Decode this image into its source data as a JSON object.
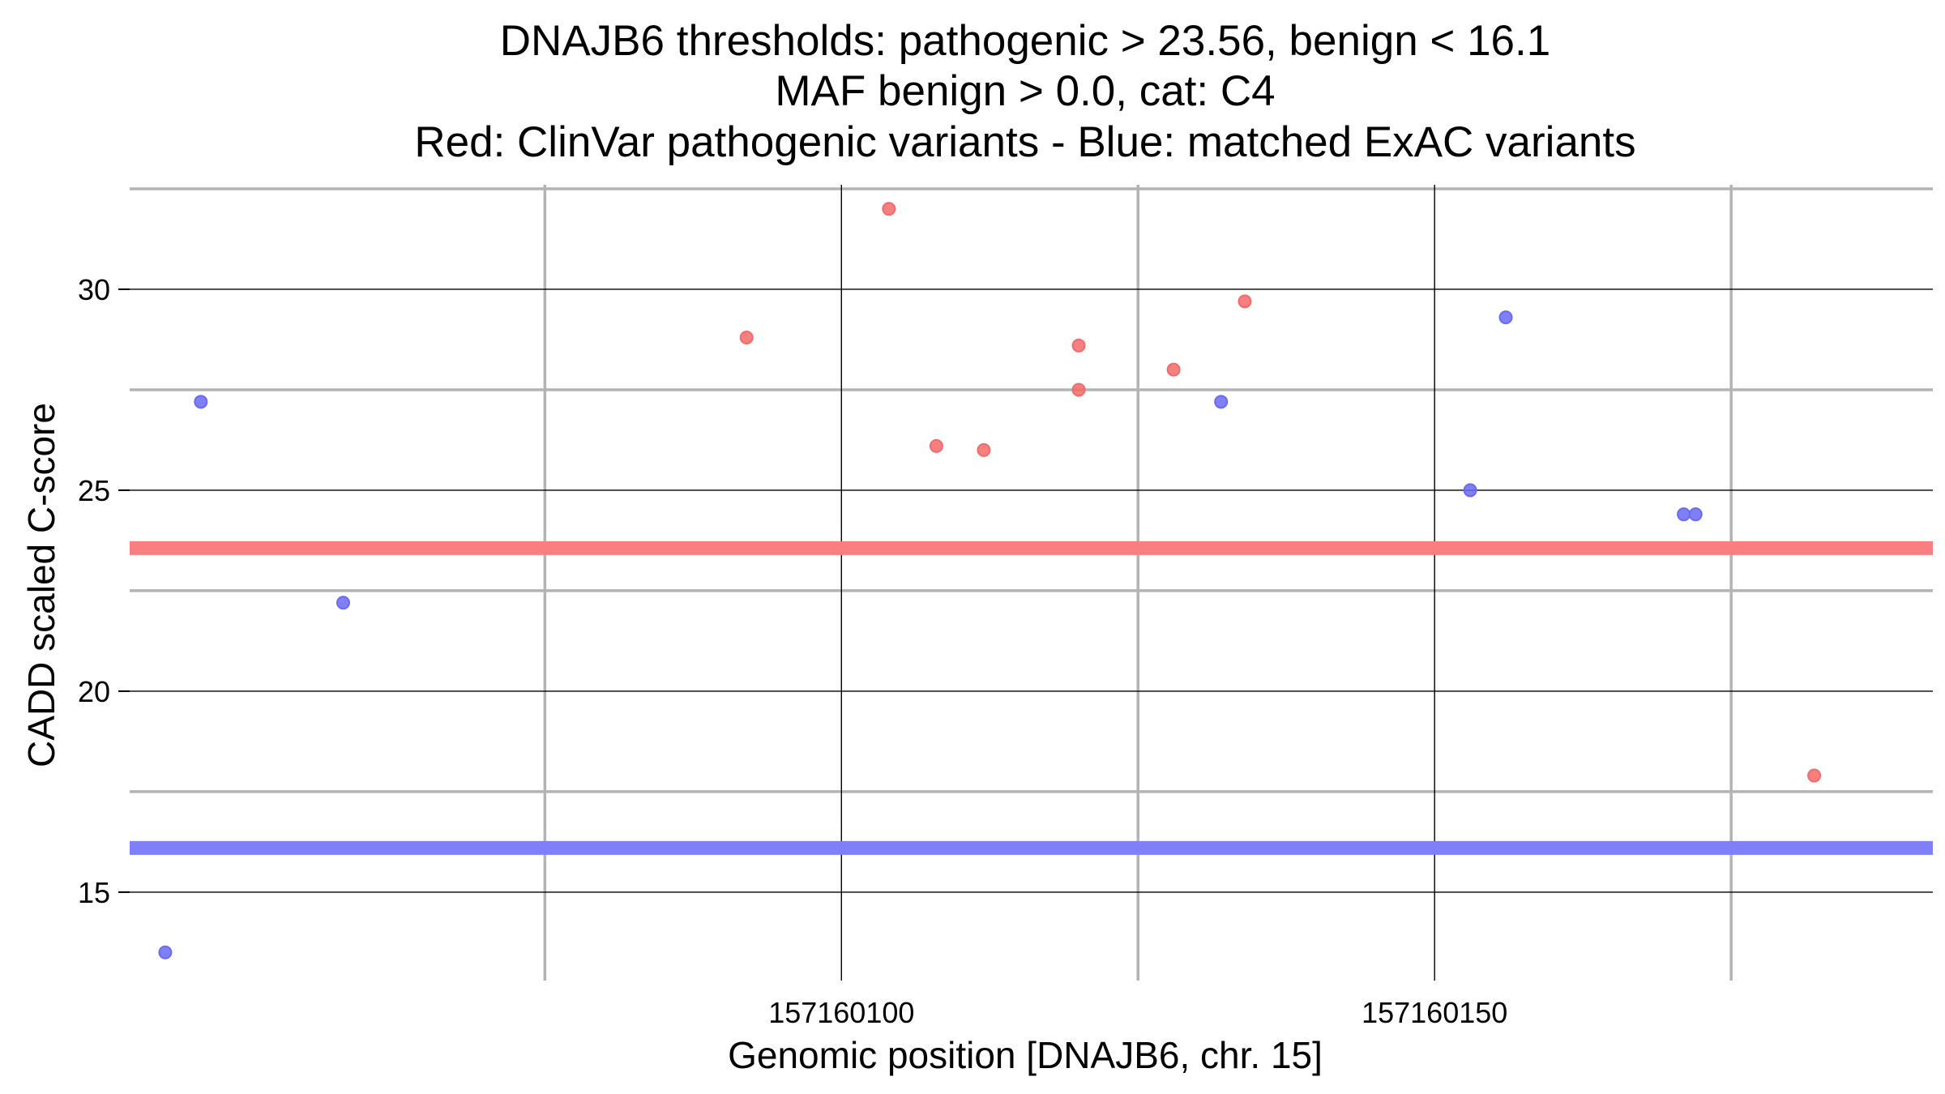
{
  "chart_data": {
    "type": "scatter",
    "title_lines": [
      "DNAJB6 thresholds: pathogenic > 23.56, benign < 16.1",
      "MAF benign > 0.0, cat: C4",
      "Red: ClinVar pathogenic variants - Blue: matched ExAC variants"
    ],
    "xlabel": "Genomic position [DNAJB6, chr. 15]",
    "ylabel": "CADD scaled C-score",
    "xlim": [
      157160040,
      157160192
    ],
    "ylim": [
      12.8,
      32.6
    ],
    "xticks": [
      157160100,
      157160150
    ],
    "yticks": [
      15,
      20,
      25,
      30
    ],
    "grid": true,
    "thresholds": [
      {
        "name": "pathogenic",
        "value": 23.56,
        "color": "#f77f7f"
      },
      {
        "name": "benign",
        "value": 16.1,
        "color": "#7f7ff7"
      }
    ],
    "series": [
      {
        "color": "#f46a6a",
        "points": [
          {
            "x": 157160104,
            "y": 32.0
          },
          {
            "x": 157160092,
            "y": 28.8
          },
          {
            "x": 157160108,
            "y": 26.1
          },
          {
            "x": 157160112,
            "y": 26.0
          },
          {
            "x": 157160120,
            "y": 28.6
          },
          {
            "x": 157160120,
            "y": 27.5
          },
          {
            "x": 157160128,
            "y": 28.0
          },
          {
            "x": 157160134,
            "y": 29.7
          },
          {
            "x": 157160182,
            "y": 17.9
          }
        ]
      },
      {
        "color": "#6a6af4",
        "points": [
          {
            "x": 157160046,
            "y": 27.2
          },
          {
            "x": 157160043,
            "y": 13.5
          },
          {
            "x": 157160058,
            "y": 22.2
          },
          {
            "x": 157160132,
            "y": 27.2
          },
          {
            "x": 157160153,
            "y": 25.0
          },
          {
            "x": 157160156,
            "y": 29.3
          },
          {
            "x": 157160171,
            "y": 24.4
          },
          {
            "x": 157160172,
            "y": 24.4
          }
        ]
      }
    ]
  }
}
